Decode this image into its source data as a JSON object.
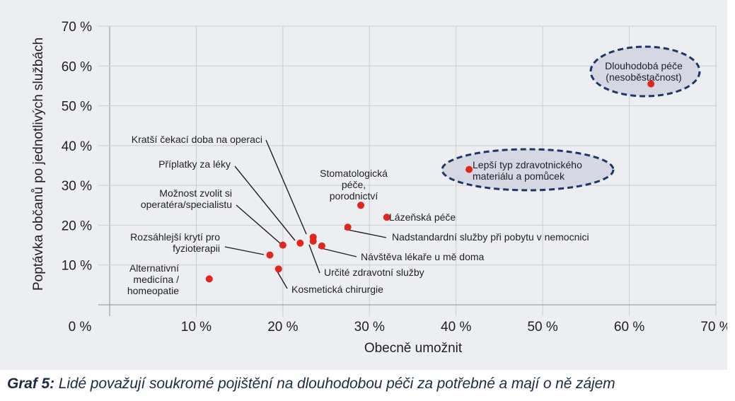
{
  "caption": {
    "prefix": "Graf 5:",
    "text": "Lidé považují soukromé pojištění na dlouhodobou péči za potřebné a mají o ně zájem"
  },
  "colors": {
    "panel_background": "#eceef1",
    "point": "#e1261c",
    "highlight_fill": "#d5d8e3",
    "highlight_stroke": "#1c3766",
    "caption_text": "#1e2c3f"
  },
  "chart_data": {
    "type": "scatter",
    "title": "",
    "xlabel": "Obecně umožnit",
    "ylabel": "Poptávka občanů po jednotlivých službách",
    "xlim": [
      0,
      70
    ],
    "ylim": [
      0,
      70
    ],
    "x_ticks": [
      "0 %",
      "10 %",
      "20 %",
      "30 %",
      "40 %",
      "50 %",
      "60 %",
      "70 %"
    ],
    "y_ticks": [
      "10 %",
      "20 %",
      "30 %",
      "40 %",
      "50 %",
      "60 %",
      "70 %"
    ],
    "grid": true,
    "points": [
      {
        "label": "Dlouhodobá péče (nesoběstačnost)",
        "label_lines": [
          "Dlouhodobá péče",
          "(nesoběstačnost)"
        ],
        "x": 62.5,
        "y": 55.5,
        "highlight": true
      },
      {
        "label": "Lepší typ zdravotnického materiálu a pomůcek",
        "label_lines": [
          "Lepší typ zdravotnického",
          "materiálu a pomůcek"
        ],
        "x": 41.5,
        "y": 34.0,
        "highlight": true
      },
      {
        "label": "Stomatologická péče, porodnictví",
        "label_lines": [
          "Stomatologická",
          "péče,",
          "porodnictví"
        ],
        "x": 29.0,
        "y": 25.0
      },
      {
        "label": "Lázeňská péče",
        "label_lines": [
          "Lázeňská péče"
        ],
        "x": 32.0,
        "y": 22.0
      },
      {
        "label": "Nadstandardní služby při pobytu v nemocnici",
        "label_lines": [
          "Nadstandardní služby při pobytu v nemocnici"
        ],
        "x": 27.5,
        "y": 19.5
      },
      {
        "label": "Kratší čekací doba na operaci",
        "label_lines": [
          "Kratší čekací doba na operaci"
        ],
        "x": 23.5,
        "y": 17.0
      },
      {
        "label": "Příplatky za léky",
        "label_lines": [
          "Příplatky za léky"
        ],
        "x": 22.0,
        "y": 15.5
      },
      {
        "label": "Určité zdravotní služby",
        "label_lines": [
          "Určité zdravotní služby"
        ],
        "x": 23.5,
        "y": 16.0
      },
      {
        "label": "Návštěva lékaře u mě doma",
        "label_lines": [
          "Návštěva lékaře u mě doma"
        ],
        "x": 24.5,
        "y": 14.8
      },
      {
        "label": "Možnost zvolit si operatéra/specialistu",
        "label_lines": [
          "Možnost zvolit si",
          "operatéra/specialistu"
        ],
        "x": 20.0,
        "y": 15.0
      },
      {
        "label": "Rozsáhlejší krytí pro fyzioterapii",
        "label_lines": [
          "Rozsáhlejší krytí pro",
          "fyzioterapii"
        ],
        "x": 18.5,
        "y": 12.5
      },
      {
        "label": "Kosmetická chirurgie",
        "label_lines": [
          "Kosmetická chirurgie"
        ],
        "x": 19.5,
        "y": 9.0
      },
      {
        "label": "Alternativní medicína / homeopatie",
        "label_lines": [
          "Alternativní",
          "medicína /",
          "homeopatie"
        ],
        "x": 11.5,
        "y": 6.5
      }
    ]
  }
}
